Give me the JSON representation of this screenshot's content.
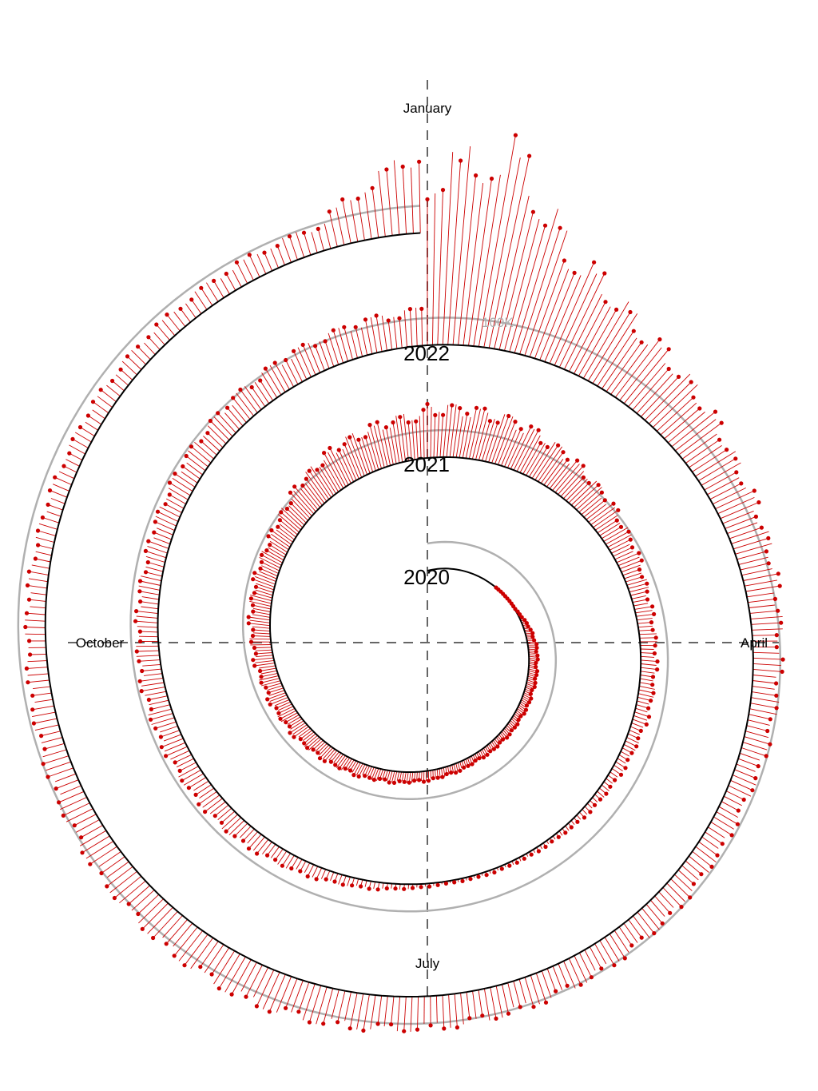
{
  "chart_data": {
    "type": "spiral",
    "axis_labels": {
      "top": "January",
      "right": "April",
      "bottom": "July",
      "left": "October"
    },
    "years": [
      "2020",
      "2021",
      "2022"
    ],
    "reference_label": "100K",
    "reference_value": 100000,
    "value_anchors": {
      "2020": {
        "days": [
          0,
          50,
          70,
          90,
          120,
          160,
          200,
          240,
          280,
          310,
          340,
          365
        ],
        "values": [
          0,
          0,
          2000,
          30000,
          30000,
          25000,
          40000,
          60000,
          70000,
          80000,
          140000,
          160000
        ]
      },
      "2021": {
        "days": [
          0,
          20,
          50,
          80,
          110,
          150,
          180,
          200,
          230,
          260,
          290,
          320,
          365
        ],
        "values": [
          180000,
          170000,
          110000,
          60000,
          50000,
          15000,
          8000,
          30000,
          70000,
          80000,
          70000,
          90000,
          130000
        ]
      },
      "2022": {
        "days": [
          0,
          10,
          20,
          35,
          60,
          90,
          120,
          160,
          190,
          210,
          240,
          270,
          300,
          330,
          350,
          365
        ],
        "values": [
          600000,
          700000,
          400000,
          250000,
          150000,
          100000,
          80000,
          100000,
          120000,
          140000,
          110000,
          70000,
          60000,
          70000,
          90000,
          300000
        ]
      }
    },
    "colors": {
      "stem": "#cc0000",
      "dot": "#cc0000",
      "baseline": "#000000",
      "reference": "#b0b0b0",
      "axis": "#666666"
    },
    "grid": false,
    "legend": "none"
  }
}
